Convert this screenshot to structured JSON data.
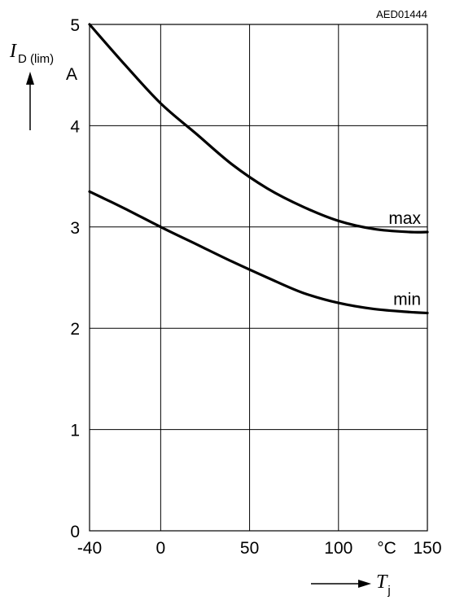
{
  "chart_data": {
    "type": "line",
    "code": "AED01444",
    "x": [
      -40,
      -20,
      0,
      20,
      40,
      60,
      80,
      100,
      120,
      140,
      150
    ],
    "series": [
      {
        "name": "max",
        "values": [
          5.0,
          4.6,
          4.22,
          3.92,
          3.62,
          3.38,
          3.2,
          3.06,
          2.98,
          2.95,
          2.95
        ]
      },
      {
        "name": "min",
        "values": [
          3.35,
          3.18,
          3.0,
          2.83,
          2.66,
          2.5,
          2.35,
          2.25,
          2.19,
          2.16,
          2.15
        ]
      }
    ],
    "xlim": [
      -40,
      150
    ],
    "ylim": [
      0,
      5
    ],
    "xticks": [
      "-40",
      "0",
      "50",
      "100",
      "150"
    ],
    "yticks": [
      "0",
      "1",
      "2",
      "3",
      "4",
      "5"
    ],
    "xunit": "°C",
    "yunit": "A",
    "xlabel": {
      "symbol": "T",
      "sub": "j"
    },
    "ylabel": {
      "symbol": "I",
      "sub": "D (lim)"
    },
    "grid": true
  }
}
